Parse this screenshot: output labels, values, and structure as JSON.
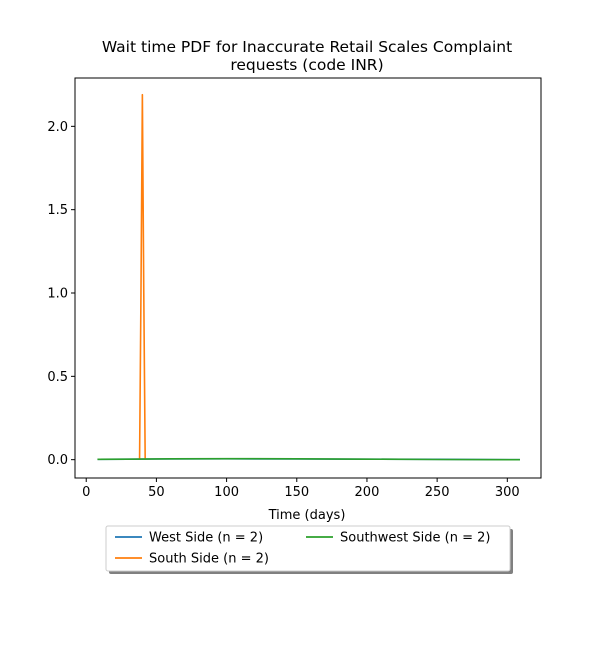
{
  "chart_data": {
    "type": "line",
    "title_lines": [
      "Wait time PDF for Inaccurate Retail Scales Complaint",
      "requests (code INR)"
    ],
    "xlabel": "Time (days)",
    "ylabel": "",
    "xlim": [
      -8,
      324
    ],
    "ylim": [
      -0.11,
      2.29
    ],
    "x_ticks": [
      0,
      50,
      100,
      150,
      200,
      250,
      300
    ],
    "y_ticks": [
      0.0,
      0.5,
      1.0,
      1.5,
      2.0
    ],
    "x_tick_labels": [
      "0",
      "50",
      "100",
      "150",
      "200",
      "250",
      "300"
    ],
    "y_tick_labels": [
      "0.0",
      "0.5",
      "1.0",
      "1.5",
      "2.0"
    ],
    "grid": false,
    "legend_placement": "below plot, two columns, with shadow",
    "series": [
      {
        "name": "West Side (n = 2)",
        "color": "#1f77b4",
        "x": [
          8,
          50,
          100,
          150,
          200,
          250,
          309
        ],
        "y": [
          0.002,
          0.004,
          0.005,
          0.004,
          0.003,
          0.002,
          0.0
        ]
      },
      {
        "name": "South Side (n = 2)",
        "color": "#ff7f0e",
        "x": [
          38,
          39,
          40,
          41,
          42
        ],
        "y": [
          0.0,
          1.0,
          2.19,
          1.0,
          0.0
        ]
      },
      {
        "name": "Southwest Side (n = 2)",
        "color": "#2ca02c",
        "x": [
          8,
          30,
          60,
          100,
          150,
          200,
          250,
          309
        ],
        "y": [
          0.002,
          0.003,
          0.005,
          0.006,
          0.005,
          0.003,
          0.001,
          0.0
        ]
      }
    ]
  }
}
